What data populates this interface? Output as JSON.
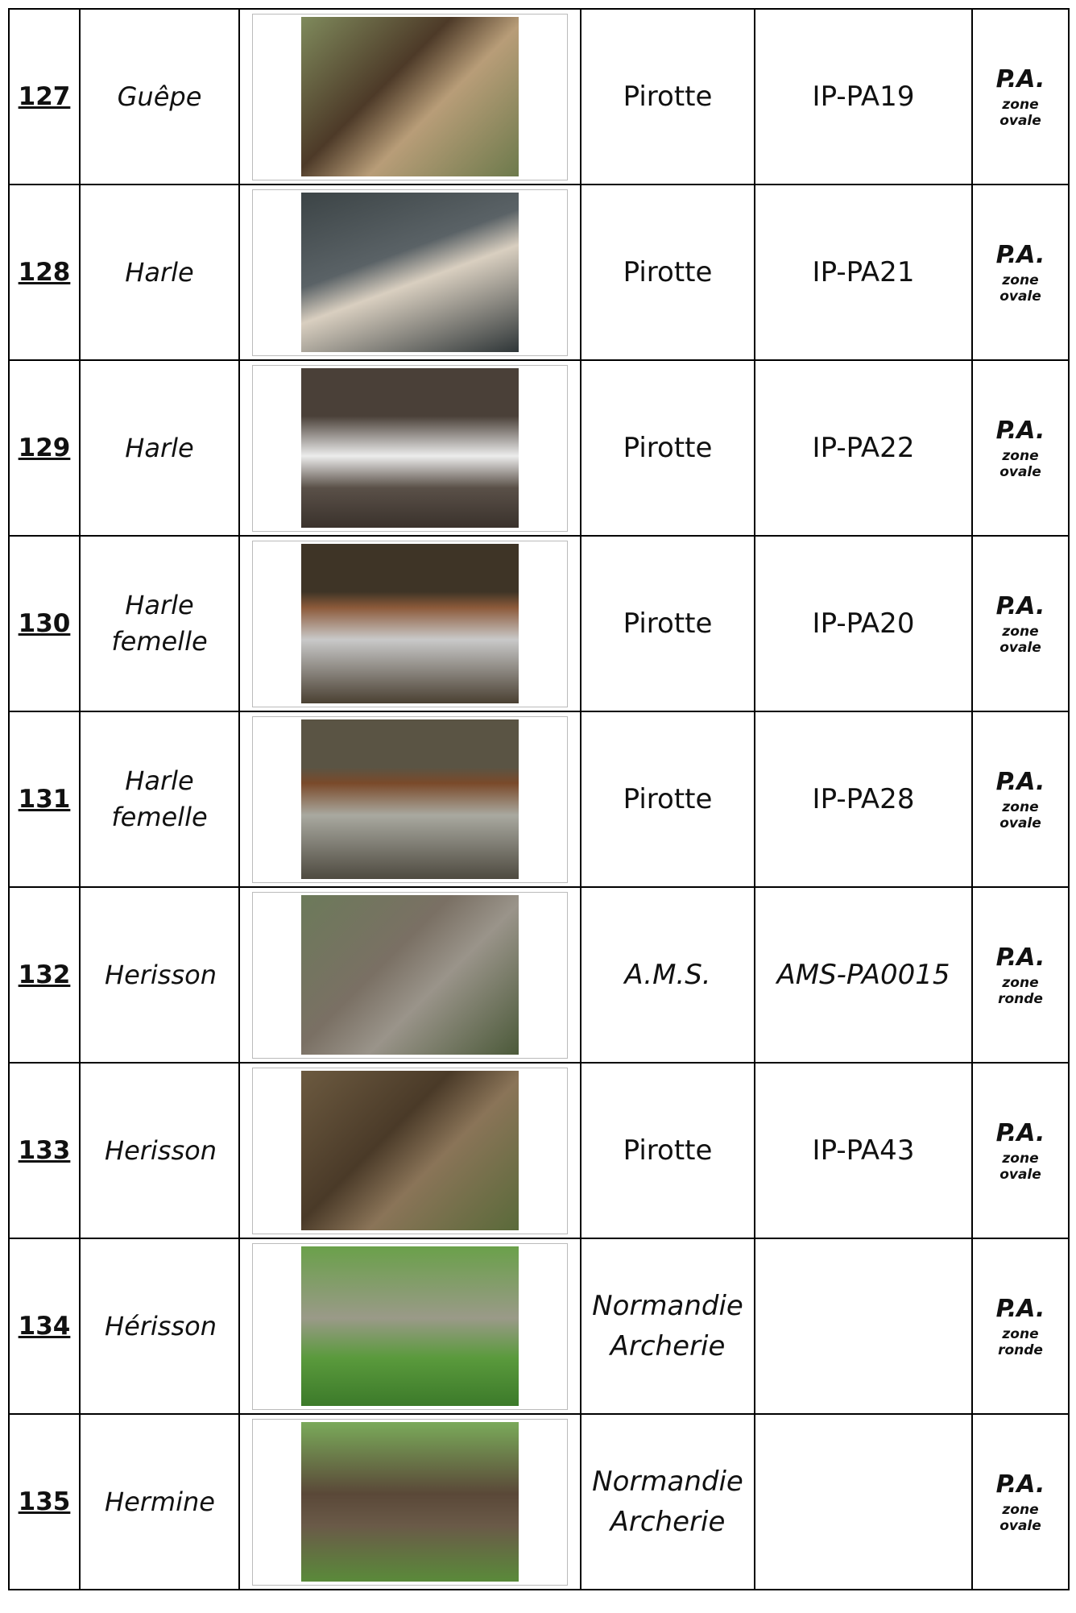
{
  "rows": [
    {
      "number": "127",
      "name": "Guêpe",
      "brand": "Pirotte",
      "reference": "IP-PA19",
      "type": "P.A.",
      "zone": "zone ovale"
    },
    {
      "number": "128",
      "name": "Harle",
      "brand": "Pirotte",
      "reference": "IP-PA21",
      "type": "P.A.",
      "zone": "zone ovale"
    },
    {
      "number": "129",
      "name": "Harle",
      "brand": "Pirotte",
      "reference": "IP-PA22",
      "type": "P.A.",
      "zone": "zone ovale"
    },
    {
      "number": "130",
      "name": "Harle femelle",
      "brand": "Pirotte",
      "reference": "IP-PA20",
      "type": "P.A.",
      "zone": "zone ovale"
    },
    {
      "number": "131",
      "name": "Harle femelle",
      "brand": "Pirotte",
      "reference": "IP-PA28",
      "type": "P.A.",
      "zone": "zone ovale"
    },
    {
      "number": "132",
      "name": "Herisson",
      "brand": "A.M.S.",
      "reference": "AMS-PA0015",
      "type": "P.A.",
      "zone": "zone ronde"
    },
    {
      "number": "133",
      "name": "Herisson",
      "brand": "Pirotte",
      "reference": "IP-PA43",
      "type": "P.A.",
      "zone": "zone ovale"
    },
    {
      "number": "134",
      "name": "Hérisson",
      "brand": "Normandie Archerie",
      "reference": null,
      "type": "P.A.",
      "zone": "zone ronde"
    },
    {
      "number": "135",
      "name": "Hermine",
      "brand": "Normandie Archerie",
      "reference": null,
      "type": "P.A.",
      "zone": "zone ovale"
    }
  ]
}
